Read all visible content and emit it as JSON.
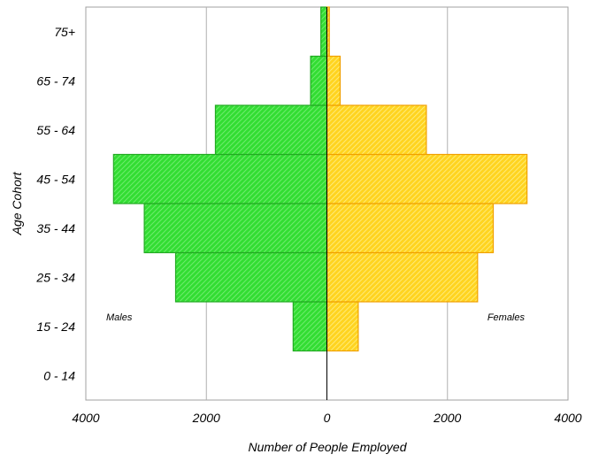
{
  "chart_data": {
    "type": "bar",
    "orientation": "horizontal",
    "subtype": "population-pyramid",
    "title": "",
    "xlabel": "Number of People Employed",
    "ylabel": "Age Cohort",
    "categories": [
      "0 - 14",
      "15 - 24",
      "25 - 34",
      "35 - 44",
      "45 - 54",
      "55 - 64",
      "65 - 74",
      "75+"
    ],
    "series": [
      {
        "values": [
          0,
          560,
          2510,
          3030,
          3540,
          1850,
          270,
          100
        ],
        "color": "#33dd33",
        "side": "left"
      },
      {
        "values": [
          0,
          520,
          2500,
          2760,
          3320,
          1650,
          220,
          40
        ],
        "color": "#ffd420",
        "side": "right"
      }
    ],
    "annotations": {
      "left": "Males",
      "right": "Females"
    },
    "xlim": [
      -4000,
      4000
    ],
    "xticks": [
      -4000,
      -2000,
      0,
      2000,
      4000
    ],
    "xtick_labels": [
      "4000",
      "2000",
      "0",
      "2000",
      "4000"
    ],
    "grid": true,
    "hatch": "diagonal"
  }
}
